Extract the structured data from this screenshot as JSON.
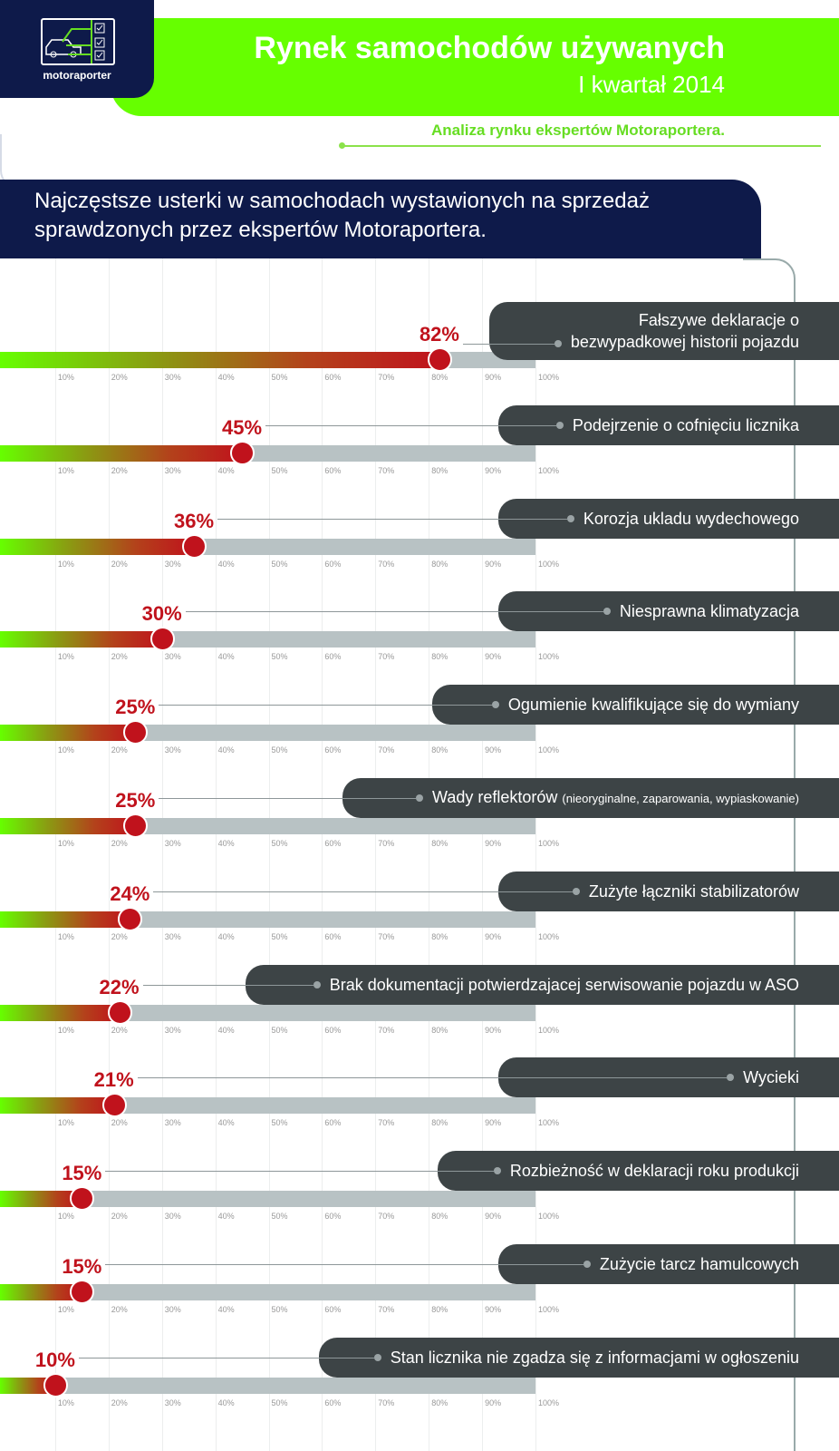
{
  "header": {
    "logo_text": "motoraporter",
    "title": "Rynek samochodów używanych",
    "subtitle": "I kwartał 2014",
    "tagline": "Analiza rynku ekspertów Motoraportera."
  },
  "section": {
    "title_line1": "Najczęstsze usterki  w samochodach wystawionych na sprzedaż",
    "title_line2": "sprawdzonych przez ekspertów Motoraportera."
  },
  "colors": {
    "navy": "#0e1a4a",
    "green": "#66ff00",
    "red": "#c0121c",
    "track": "#b8c2c4",
    "label_bg": "#3d4446"
  },
  "chart_data": {
    "type": "bar",
    "orientation": "horizontal",
    "xlim": [
      0,
      100
    ],
    "tick_labels": [
      "10%",
      "20%",
      "30%",
      "40%",
      "50%",
      "60%",
      "70%",
      "80%",
      "90%",
      "100%"
    ],
    "grid": true,
    "items": [
      {
        "label": "Fałszywe deklaracje o",
        "label2": "bezwypadkowej historii pojazdu",
        "value": 82,
        "value_label": "82%"
      },
      {
        "label": "Podejrzenie o cofnięciu licznika",
        "value": 45,
        "value_label": "45%"
      },
      {
        "label": "Korozja ukladu wydechowego",
        "value": 36,
        "value_label": "36%"
      },
      {
        "label": "Niesprawna klimatyzacja",
        "value": 30,
        "value_label": "30%"
      },
      {
        "label": "Ogumienie kwalifikujące się do wymiany",
        "value": 25,
        "value_label": "25%"
      },
      {
        "label": "Wady reflektorów",
        "note": "(nieoryginalne, zaparowania, wypiaskowanie)",
        "value": 25,
        "value_label": "25%"
      },
      {
        "label": "Zużyte łączniki stabilizatorów",
        "value": 24,
        "value_label": "24%"
      },
      {
        "label": "Brak dokumentacji potwierdzajacej serwisowanie pojazdu w ASO",
        "value": 22,
        "value_label": "22%"
      },
      {
        "label": "Wycieki",
        "value": 21,
        "value_label": "21%"
      },
      {
        "label": "Rozbieżność w deklaracji roku produkcji",
        "value": 15,
        "value_label": "15%"
      },
      {
        "label": "Zużycie tarcz hamulcowych",
        "value": 15,
        "value_label": "15%"
      },
      {
        "label": "Stan licznika nie zgadza się z informacjami w ogłoszeniu",
        "value": 10,
        "value_label": "10%"
      }
    ]
  }
}
